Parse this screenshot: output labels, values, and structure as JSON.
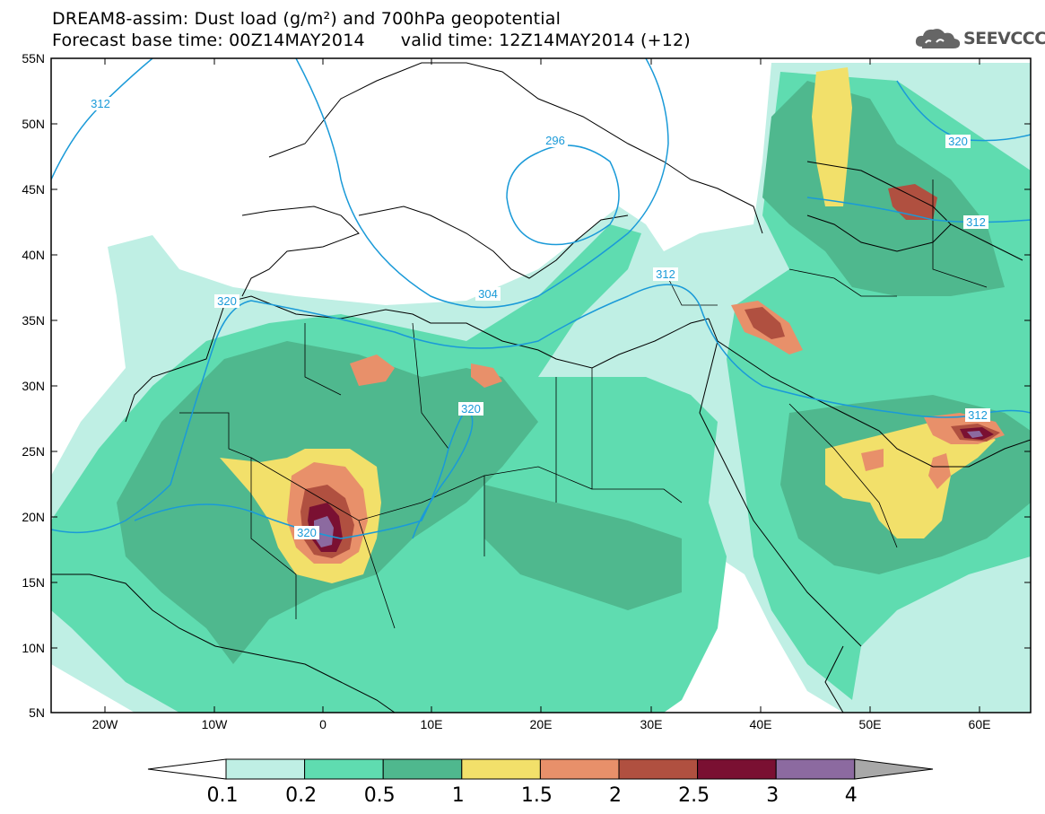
{
  "title": {
    "line1": "DREAM8-assim: Dust load (g/m²) and 700hPa geopotential",
    "base_time": "Forecast base time: 00Z14MAY2014",
    "valid_time": "valid time: 12Z14MAY2014 (+12)"
  },
  "logo": {
    "text": "SEEVCCC",
    "icon": "cloud-icon"
  },
  "axes": {
    "lat_labels": [
      "55N",
      "50N",
      "45N",
      "40N",
      "35N",
      "30N",
      "25N",
      "20N",
      "15N",
      "10N",
      "5N"
    ],
    "lon_labels": [
      "20W",
      "10W",
      "0",
      "10E",
      "20E",
      "30E",
      "40E",
      "50E",
      "60E"
    ]
  },
  "contour_labels": [
    "312",
    "296",
    "320",
    "304",
    "312",
    "320",
    "320",
    "312",
    "312",
    "320"
  ],
  "colorbar": {
    "labels": [
      "0.1",
      "0.2",
      "0.5",
      "1",
      "1.5",
      "2",
      "2.5",
      "3",
      "4"
    ],
    "colors": [
      "#bfefe4",
      "#5fdcb0",
      "#4fb88e",
      "#f2e06a",
      "#e8906a",
      "#b05040",
      "#7a1032",
      "#8c6aa0",
      "#a8a8a8"
    ]
  },
  "colors": {
    "light": "#bfefe4",
    "mint": "#5fdcb0",
    "green": "#4fb88e",
    "yellow": "#f2e06a",
    "orange": "#e8906a",
    "brown": "#b05040",
    "maroon": "#7a1032",
    "purple": "#8c6aa0",
    "contour": "#1a9ad8"
  }
}
